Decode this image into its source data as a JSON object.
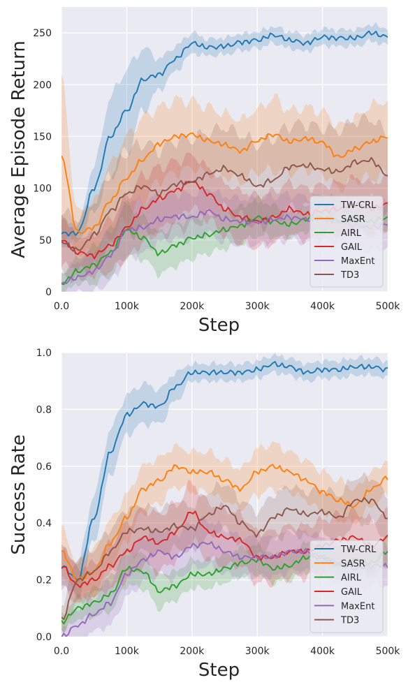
{
  "chart_data": [
    {
      "type": "line",
      "title": "",
      "xlabel": "Step",
      "ylabel": "Average Episode Return",
      "xlim": [
        0,
        500000
      ],
      "ylim": [
        0,
        275
      ],
      "x_ticks": [
        0,
        100000,
        200000,
        300000,
        400000,
        500000
      ],
      "x_tick_labels": [
        "0.0",
        "100k",
        "200k",
        "300k",
        "400k",
        "500k"
      ],
      "y_ticks": [
        0,
        50,
        100,
        150,
        200,
        250
      ],
      "y_tick_labels": [
        "0",
        "50",
        "100",
        "150",
        "200",
        "250"
      ],
      "grid": true,
      "legend_position": "bottom-right",
      "x": [
        0,
        25000,
        50000,
        75000,
        100000,
        125000,
        150000,
        175000,
        200000,
        225000,
        250000,
        275000,
        300000,
        325000,
        350000,
        375000,
        400000,
        425000,
        450000,
        475000,
        500000
      ],
      "series": [
        {
          "name": "TW-CRL",
          "color": "#1f77b4",
          "values": [
            56,
            57,
            100,
            150,
            175,
            205,
            210,
            225,
            240,
            236,
            237,
            241,
            243,
            248,
            243,
            240,
            246,
            245,
            245,
            250,
            246
          ],
          "band": [
            13,
            8,
            22,
            38,
            40,
            30,
            15,
            12,
            10,
            8,
            8,
            8,
            8,
            8,
            8,
            8,
            8,
            8,
            8,
            8,
            8
          ]
        },
        {
          "name": "SASR",
          "color": "#ff7f0e",
          "values": [
            130,
            57,
            62,
            88,
            110,
            128,
            143,
            150,
            152,
            146,
            142,
            136,
            146,
            152,
            145,
            148,
            144,
            130,
            138,
            145,
            150
          ],
          "band": [
            70,
            20,
            25,
            35,
            40,
            40,
            35,
            35,
            32,
            32,
            30,
            30,
            30,
            35,
            30,
            30,
            30,
            30,
            30,
            35,
            35
          ]
        },
        {
          "name": "AIRL",
          "color": "#2ca02c",
          "values": [
            8,
            20,
            26,
            38,
            60,
            52,
            37,
            45,
            52,
            55,
            60,
            64,
            72,
            68,
            65,
            70,
            72,
            68,
            70,
            68,
            72
          ],
          "band": [
            10,
            12,
            18,
            22,
            25,
            20,
            20,
            20,
            20,
            18,
            18,
            18,
            18,
            15,
            12,
            12,
            12,
            12,
            12,
            12,
            12
          ]
        },
        {
          "name": "GAIL",
          "color": "#d62728",
          "values": [
            50,
            38,
            35,
            45,
            62,
            80,
            90,
            98,
            107,
            95,
            80,
            72,
            68,
            72,
            80,
            75,
            78,
            80,
            85,
            80,
            85
          ],
          "band": [
            25,
            15,
            20,
            25,
            30,
            32,
            30,
            28,
            25,
            25,
            25,
            25,
            25,
            25,
            25,
            25,
            25,
            25,
            25,
            25,
            25
          ]
        },
        {
          "name": "MaxEnt",
          "color": "#9467bd",
          "values": [
            8,
            14,
            20,
            35,
            60,
            62,
            70,
            73,
            72,
            78,
            70,
            68,
            67,
            70,
            72,
            70,
            70,
            68,
            64,
            62,
            65
          ],
          "band": [
            10,
            15,
            20,
            25,
            28,
            25,
            22,
            22,
            22,
            22,
            22,
            22,
            22,
            22,
            22,
            22,
            22,
            22,
            22,
            22,
            22
          ]
        },
        {
          "name": "TD3",
          "color": "#8c564b",
          "values": [
            48,
            40,
            55,
            78,
            95,
            102,
            95,
            104,
            106,
            114,
            119,
            112,
            102,
            108,
            121,
            122,
            118,
            116,
            125,
            127,
            112
          ],
          "band": [
            30,
            30,
            32,
            35,
            40,
            42,
            42,
            42,
            42,
            40,
            40,
            40,
            40,
            40,
            40,
            40,
            40,
            40,
            40,
            40,
            40
          ]
        }
      ]
    },
    {
      "type": "line",
      "title": "",
      "xlabel": "Step",
      "ylabel": "Success Rate",
      "xlim": [
        0,
        500000
      ],
      "ylim": [
        0,
        1.0
      ],
      "x_ticks": [
        0,
        100000,
        200000,
        300000,
        400000,
        500000
      ],
      "x_tick_labels": [
        "0.0",
        "100k",
        "200k",
        "300k",
        "400k",
        "500k"
      ],
      "y_ticks": [
        0,
        0.2,
        0.4,
        0.6,
        0.8,
        1.0
      ],
      "y_tick_labels": [
        "0.0",
        "0.2",
        "0.4",
        "0.6",
        "0.8",
        "1.0"
      ],
      "grid": true,
      "legend_position": "bottom-right",
      "x": [
        0,
        25000,
        50000,
        75000,
        100000,
        125000,
        150000,
        175000,
        200000,
        225000,
        250000,
        275000,
        300000,
        325000,
        350000,
        375000,
        400000,
        425000,
        450000,
        475000,
        500000
      ],
      "series": [
        {
          "name": "TW-CRL",
          "color": "#1f77b4",
          "values": [
            0.25,
            0.2,
            0.42,
            0.65,
            0.78,
            0.82,
            0.81,
            0.88,
            0.93,
            0.93,
            0.93,
            0.93,
            0.94,
            0.96,
            0.95,
            0.93,
            0.94,
            0.94,
            0.95,
            0.95,
            0.94
          ],
          "band": [
            0.06,
            0.06,
            0.08,
            0.08,
            0.07,
            0.07,
            0.06,
            0.05,
            0.03,
            0.03,
            0.03,
            0.03,
            0.03,
            0.03,
            0.03,
            0.03,
            0.03,
            0.03,
            0.03,
            0.03,
            0.03
          ]
        },
        {
          "name": "SASR",
          "color": "#ff7f0e",
          "values": [
            0.3,
            0.2,
            0.23,
            0.33,
            0.42,
            0.52,
            0.55,
            0.6,
            0.58,
            0.58,
            0.55,
            0.52,
            0.58,
            0.6,
            0.58,
            0.55,
            0.51,
            0.48,
            0.46,
            0.52,
            0.56
          ],
          "band": [
            0.08,
            0.06,
            0.08,
            0.08,
            0.08,
            0.08,
            0.08,
            0.07,
            0.07,
            0.07,
            0.07,
            0.07,
            0.08,
            0.08,
            0.07,
            0.07,
            0.07,
            0.07,
            0.06,
            0.06,
            0.06
          ]
        },
        {
          "name": "AIRL",
          "color": "#2ca02c",
          "values": [
            0.05,
            0.1,
            0.12,
            0.15,
            0.24,
            0.23,
            0.16,
            0.18,
            0.22,
            0.22,
            0.24,
            0.26,
            0.27,
            0.24,
            0.25,
            0.28,
            0.28,
            0.25,
            0.27,
            0.26,
            0.3
          ],
          "band": [
            0.03,
            0.04,
            0.05,
            0.06,
            0.06,
            0.06,
            0.06,
            0.05,
            0.05,
            0.05,
            0.05,
            0.05,
            0.05,
            0.05,
            0.05,
            0.05,
            0.05,
            0.05,
            0.05,
            0.05,
            0.05
          ]
        },
        {
          "name": "GAIL",
          "color": "#d62728",
          "values": [
            0.25,
            0.18,
            0.2,
            0.25,
            0.3,
            0.35,
            0.33,
            0.37,
            0.44,
            0.37,
            0.35,
            0.34,
            0.28,
            0.28,
            0.3,
            0.3,
            0.32,
            0.34,
            0.35,
            0.32,
            0.35
          ],
          "band": [
            0.08,
            0.06,
            0.06,
            0.08,
            0.1,
            0.1,
            0.1,
            0.1,
            0.1,
            0.1,
            0.1,
            0.09,
            0.09,
            0.09,
            0.09,
            0.09,
            0.09,
            0.09,
            0.09,
            0.09,
            0.09
          ]
        },
        {
          "name": "MaxEnt",
          "color": "#9467bd",
          "values": [
            0.0,
            0.04,
            0.08,
            0.12,
            0.22,
            0.27,
            0.3,
            0.28,
            0.32,
            0.33,
            0.3,
            0.28,
            0.28,
            0.28,
            0.3,
            0.3,
            0.28,
            0.26,
            0.24,
            0.25,
            0.25
          ],
          "band": [
            0.03,
            0.06,
            0.06,
            0.08,
            0.08,
            0.08,
            0.08,
            0.08,
            0.08,
            0.08,
            0.08,
            0.07,
            0.07,
            0.07,
            0.07,
            0.07,
            0.07,
            0.07,
            0.07,
            0.07,
            0.07
          ]
        },
        {
          "name": "TD3",
          "color": "#8c564b",
          "values": [
            0.06,
            0.2,
            0.23,
            0.3,
            0.37,
            0.38,
            0.37,
            0.39,
            0.38,
            0.43,
            0.46,
            0.4,
            0.36,
            0.42,
            0.45,
            0.43,
            0.44,
            0.42,
            0.48,
            0.48,
            0.42
          ],
          "band": [
            0.05,
            0.08,
            0.08,
            0.08,
            0.08,
            0.08,
            0.08,
            0.08,
            0.08,
            0.08,
            0.08,
            0.08,
            0.08,
            0.08,
            0.08,
            0.08,
            0.08,
            0.08,
            0.08,
            0.08,
            0.08
          ]
        }
      ]
    }
  ]
}
